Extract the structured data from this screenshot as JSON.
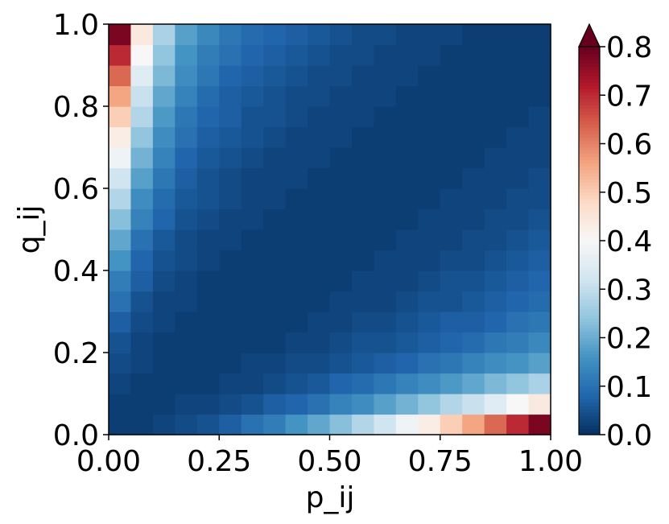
{
  "chart_data": {
    "type": "heatmap",
    "x_label": "p_ij",
    "y_label": "q_ij",
    "xlim": [
      0,
      1
    ],
    "ylim": [
      0,
      1
    ],
    "xticks": [
      {
        "value": 0,
        "label": "0.00"
      },
      {
        "value": 0.25,
        "label": "0.25"
      },
      {
        "value": 0.5,
        "label": "0.50"
      },
      {
        "value": 0.75,
        "label": "0.75"
      },
      {
        "value": 1,
        "label": "1.00"
      }
    ],
    "yticks": [
      {
        "value": 0,
        "label": "0.0"
      },
      {
        "value": 0.2,
        "label": "0.2"
      },
      {
        "value": 0.4,
        "label": "0.4"
      },
      {
        "value": 0.6,
        "label": "0.6"
      },
      {
        "value": 0.8,
        "label": "0.8"
      },
      {
        "value": 1,
        "label": "1.0"
      }
    ],
    "colorbar": {
      "lim": [
        0,
        0.8
      ],
      "extend": "max",
      "ticks": [
        {
          "value": 0,
          "label": "0.0"
        },
        0.1,
        0.2,
        0.3,
        0.4,
        0.5,
        0.6,
        0.7,
        0.8
      ],
      "colormap": [
        "#053061",
        "#2166ac",
        "#4393c3",
        "#92c5de",
        "#d1e5f0",
        "#f7f7f7",
        "#fddbc7",
        "#f4a582",
        "#d6604d",
        "#b2182b",
        "#67001f"
      ]
    },
    "z": [
      [
        0.02,
        0.02,
        0.03,
        0.04,
        0.05,
        0.07,
        0.1,
        0.12,
        0.16,
        0.19,
        0.23,
        0.28,
        0.32,
        0.38,
        0.43,
        0.5,
        0.56,
        0.63,
        0.7,
        0.78
      ],
      [
        0.02,
        0.02,
        0.02,
        0.03,
        0.03,
        0.04,
        0.05,
        0.07,
        0.08,
        0.1,
        0.13,
        0.15,
        0.18,
        0.21,
        0.24,
        0.28,
        0.31,
        0.35,
        0.4,
        0.44
      ],
      [
        0.03,
        0.02,
        0.02,
        0.02,
        0.02,
        0.03,
        0.03,
        0.04,
        0.05,
        0.06,
        0.08,
        0.09,
        0.11,
        0.13,
        0.15,
        0.17,
        0.19,
        0.22,
        0.24,
        0.27
      ],
      [
        0.04,
        0.03,
        0.02,
        0.02,
        0.02,
        0.02,
        0.03,
        0.03,
        0.04,
        0.04,
        0.05,
        0.06,
        0.07,
        0.08,
        0.1,
        0.11,
        0.13,
        0.15,
        0.16,
        0.18
      ],
      [
        0.05,
        0.03,
        0.02,
        0.02,
        0.02,
        0.02,
        0.02,
        0.02,
        0.03,
        0.03,
        0.04,
        0.05,
        0.05,
        0.06,
        0.07,
        0.08,
        0.09,
        0.11,
        0.12,
        0.14
      ],
      [
        0.07,
        0.04,
        0.03,
        0.02,
        0.02,
        0.02,
        0.02,
        0.02,
        0.02,
        0.03,
        0.03,
        0.04,
        0.04,
        0.05,
        0.06,
        0.07,
        0.07,
        0.08,
        0.1,
        0.11
      ],
      [
        0.1,
        0.05,
        0.03,
        0.03,
        0.02,
        0.02,
        0.02,
        0.02,
        0.02,
        0.02,
        0.03,
        0.03,
        0.03,
        0.04,
        0.05,
        0.05,
        0.06,
        0.07,
        0.08,
        0.09
      ],
      [
        0.12,
        0.07,
        0.04,
        0.03,
        0.02,
        0.02,
        0.02,
        0.02,
        0.02,
        0.02,
        0.02,
        0.03,
        0.03,
        0.03,
        0.04,
        0.05,
        0.05,
        0.06,
        0.07,
        0.08
      ],
      [
        0.16,
        0.08,
        0.05,
        0.04,
        0.03,
        0.02,
        0.02,
        0.02,
        0.02,
        0.02,
        0.02,
        0.02,
        0.03,
        0.03,
        0.03,
        0.04,
        0.04,
        0.05,
        0.06,
        0.07
      ],
      [
        0.19,
        0.1,
        0.06,
        0.04,
        0.03,
        0.03,
        0.02,
        0.02,
        0.02,
        0.02,
        0.02,
        0.02,
        0.02,
        0.03,
        0.03,
        0.03,
        0.04,
        0.04,
        0.05,
        0.06
      ],
      [
        0.23,
        0.13,
        0.08,
        0.05,
        0.04,
        0.03,
        0.03,
        0.02,
        0.02,
        0.02,
        0.02,
        0.02,
        0.02,
        0.02,
        0.03,
        0.03,
        0.03,
        0.04,
        0.04,
        0.05
      ],
      [
        0.28,
        0.15,
        0.09,
        0.06,
        0.05,
        0.04,
        0.03,
        0.03,
        0.02,
        0.02,
        0.02,
        0.02,
        0.02,
        0.02,
        0.02,
        0.03,
        0.03,
        0.03,
        0.04,
        0.04
      ],
      [
        0.32,
        0.18,
        0.11,
        0.07,
        0.05,
        0.04,
        0.03,
        0.03,
        0.03,
        0.02,
        0.02,
        0.02,
        0.02,
        0.02,
        0.02,
        0.02,
        0.03,
        0.03,
        0.03,
        0.04
      ],
      [
        0.38,
        0.21,
        0.13,
        0.08,
        0.06,
        0.05,
        0.04,
        0.03,
        0.03,
        0.03,
        0.02,
        0.02,
        0.02,
        0.02,
        0.02,
        0.02,
        0.02,
        0.03,
        0.03,
        0.03
      ],
      [
        0.43,
        0.24,
        0.15,
        0.1,
        0.07,
        0.06,
        0.05,
        0.04,
        0.03,
        0.03,
        0.03,
        0.02,
        0.02,
        0.02,
        0.02,
        0.02,
        0.02,
        0.02,
        0.03,
        0.03
      ],
      [
        0.5,
        0.28,
        0.17,
        0.11,
        0.08,
        0.07,
        0.05,
        0.05,
        0.04,
        0.03,
        0.03,
        0.03,
        0.02,
        0.02,
        0.02,
        0.02,
        0.02,
        0.02,
        0.02,
        0.03
      ],
      [
        0.56,
        0.31,
        0.19,
        0.13,
        0.09,
        0.07,
        0.06,
        0.05,
        0.04,
        0.04,
        0.03,
        0.03,
        0.03,
        0.02,
        0.02,
        0.02,
        0.02,
        0.02,
        0.02,
        0.02
      ],
      [
        0.63,
        0.35,
        0.22,
        0.15,
        0.11,
        0.08,
        0.07,
        0.06,
        0.05,
        0.04,
        0.04,
        0.03,
        0.03,
        0.03,
        0.02,
        0.02,
        0.02,
        0.02,
        0.02,
        0.02
      ],
      [
        0.7,
        0.4,
        0.24,
        0.16,
        0.12,
        0.1,
        0.08,
        0.07,
        0.06,
        0.05,
        0.04,
        0.04,
        0.03,
        0.03,
        0.03,
        0.02,
        0.02,
        0.02,
        0.02,
        0.02
      ],
      [
        0.78,
        0.44,
        0.27,
        0.18,
        0.14,
        0.11,
        0.09,
        0.08,
        0.07,
        0.06,
        0.05,
        0.04,
        0.04,
        0.03,
        0.03,
        0.03,
        0.02,
        0.02,
        0.02,
        0.02
      ]
    ]
  }
}
